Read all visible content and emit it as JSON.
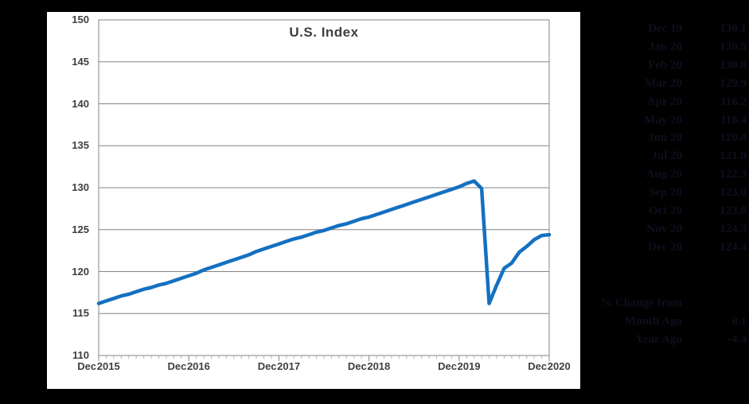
{
  "window": {
    "background": "#000000"
  },
  "chart": {
    "title": "U.S. Index",
    "panel_bg": "#ffffff",
    "line_color": "#1470c0",
    "grid_color": "#848484",
    "minor_tick_color": "#b3b3b3",
    "axis_text_color": "#3f3f3f"
  },
  "chart_data": {
    "type": "line",
    "title": "U.S. Index",
    "series_name": "U.S. Index",
    "ylim": [
      110,
      150
    ],
    "y_ticks": [
      150,
      145,
      140,
      135,
      130,
      125,
      120,
      115,
      110
    ],
    "x_tick_labels": [
      "Dec 2015",
      "Dec 2016",
      "Dec 2017",
      "Dec 2018",
      "Dec 2019",
      "Dec 2020"
    ],
    "grid": true,
    "legend": false,
    "x": [
      "Dec 15",
      "Jan 16",
      "Feb 16",
      "Mar 16",
      "Apr 16",
      "May 16",
      "Jun 16",
      "Jul 16",
      "Aug 16",
      "Sep 16",
      "Oct 16",
      "Nov 16",
      "Dec 16",
      "Jan 17",
      "Feb 17",
      "Mar 17",
      "Apr 17",
      "May 17",
      "Jun 17",
      "Jul 17",
      "Aug 17",
      "Sep 17",
      "Oct 17",
      "Nov 17",
      "Dec 17",
      "Jan 18",
      "Feb 18",
      "Mar 18",
      "Apr 18",
      "May 18",
      "Jun 18",
      "Jul 18",
      "Aug 18",
      "Sep 18",
      "Oct 18",
      "Nov 18",
      "Dec 18",
      "Jan 19",
      "Feb 19",
      "Mar 19",
      "Apr 19",
      "May 19",
      "Jun 19",
      "Jul 19",
      "Aug 19",
      "Sep 19",
      "Oct 19",
      "Nov 19",
      "Dec 19",
      "Jan 20",
      "Feb 20",
      "Mar 20",
      "Apr 20",
      "May 20",
      "Jun 20",
      "Jul 20",
      "Aug 20",
      "Sep 20",
      "Oct 20",
      "Nov 20",
      "Dec 20"
    ],
    "values": [
      116.2,
      116.5,
      116.8,
      117.1,
      117.3,
      117.6,
      117.9,
      118.1,
      118.4,
      118.6,
      118.9,
      119.2,
      119.5,
      119.8,
      120.2,
      120.5,
      120.8,
      121.1,
      121.4,
      121.7,
      122.0,
      122.4,
      122.7,
      123.0,
      123.3,
      123.6,
      123.9,
      124.1,
      124.4,
      124.7,
      124.9,
      125.2,
      125.5,
      125.7,
      126.0,
      126.3,
      126.5,
      126.8,
      127.1,
      127.4,
      127.7,
      128.0,
      128.3,
      128.6,
      128.9,
      129.2,
      129.5,
      129.8,
      130.1,
      130.5,
      130.8,
      129.9,
      116.2,
      118.4,
      120.4,
      121.0,
      122.3,
      123.0,
      123.8,
      124.3,
      124.4
    ]
  },
  "side_panel": {
    "text_color": "#0e0e1e",
    "rows": [
      {
        "label": "Dec 19",
        "value": "130.1"
      },
      {
        "label": "Jan 20",
        "value": "130.5"
      },
      {
        "label": "Feb 20",
        "value": "130.8"
      },
      {
        "label": "Mar 20",
        "value": "129.9"
      },
      {
        "label": "Apr 20",
        "value": "116.2"
      },
      {
        "label": "May 20",
        "value": "118.4"
      },
      {
        "label": "Jun 20",
        "value": "120.4"
      },
      {
        "label": "Jul 20",
        "value": "121.0"
      },
      {
        "label": "Aug 20",
        "value": "122.3"
      },
      {
        "label": "Sep 20",
        "value": "123.0"
      },
      {
        "label": "Oct 20",
        "value": "123.8"
      },
      {
        "label": "Nov 20",
        "value": "124.3"
      },
      {
        "label": "Dec 20",
        "value": "124.4"
      }
    ],
    "change_header": "% Change from",
    "change_rows": [
      {
        "label": "Month Ago",
        "value": "0.1"
      },
      {
        "label": "Year Ago",
        "value": "-4.4"
      }
    ]
  }
}
